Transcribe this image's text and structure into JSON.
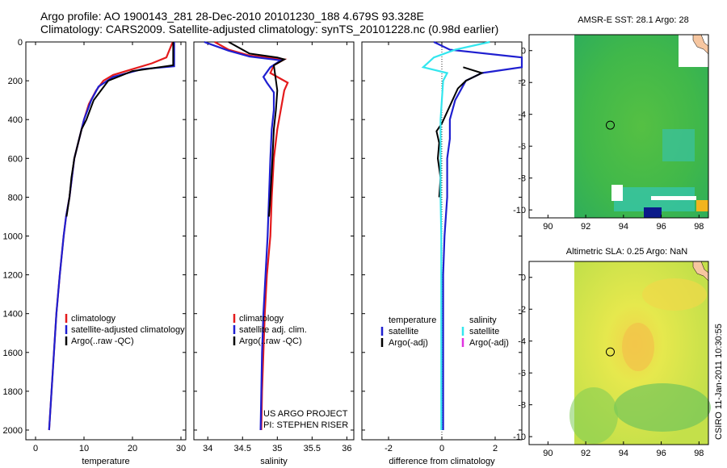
{
  "header": {
    "line1": "Argo profile: AO 1900143_281 28-Dec-2010 20101230_188 4.679S 93.328E",
    "line2": "Climatology: CARS2009. Satellite-adjusted climatology: synTS_20101228.nc (0.98d earlier)"
  },
  "side_text": "CSIRO 11-Jan-2011 10:30:55",
  "colors": {
    "red": "#e41a1c",
    "blue": "#1f1fd0",
    "black": "#000000",
    "cyan": "#33e6ee",
    "magenta": "#e033e0"
  },
  "chart_data": [
    {
      "id": "temperature",
      "type": "line",
      "xlabel": "temperature",
      "ylabel": "",
      "xlim": [
        -2,
        31
      ],
      "ylim": [
        0,
        2050
      ],
      "y_reversed": true,
      "xticks": [
        0,
        10,
        20,
        30
      ],
      "yticks": [
        0,
        200,
        400,
        600,
        800,
        1000,
        1200,
        1400,
        1600,
        1800,
        2000
      ],
      "legend": {
        "placement": "lower-center",
        "entries": [
          {
            "label": "climatology",
            "color": "#e41a1c"
          },
          {
            "label": "satellite-adjusted climatology",
            "color": "#1f1fd0"
          },
          {
            "label": "Argo(..raw -QC)",
            "color": "#000000"
          }
        ]
      },
      "series": [
        {
          "name": "climatology",
          "color": "#e41a1c",
          "points": [
            [
              28.3,
              0
            ],
            [
              27,
              80
            ],
            [
              24,
              110
            ],
            [
              20,
              140
            ],
            [
              16,
              170
            ],
            [
              14,
              200
            ],
            [
              12.5,
              250
            ],
            [
              11,
              320
            ],
            [
              10,
              400
            ],
            [
              9,
              500
            ],
            [
              8,
              600
            ],
            [
              7.5,
              700
            ],
            [
              7,
              800
            ],
            [
              6.3,
              900
            ],
            [
              5.8,
              1000
            ],
            [
              5,
              1200
            ],
            [
              4.3,
              1400
            ],
            [
              3.8,
              1600
            ],
            [
              3.3,
              1800
            ],
            [
              2.8,
              2000
            ]
          ]
        },
        {
          "name": "satellite-adjusted climatology",
          "color": "#1f1fd0",
          "points": [
            [
              28.6,
              0
            ],
            [
              28.6,
              125
            ],
            [
              22,
              140
            ],
            [
              16,
              180
            ],
            [
              13,
              230
            ],
            [
              11.5,
              300
            ],
            [
              10,
              400
            ],
            [
              9,
              500
            ],
            [
              8,
              600
            ],
            [
              7.5,
              700
            ],
            [
              7,
              800
            ],
            [
              6.3,
              900
            ],
            [
              5.8,
              1000
            ],
            [
              5,
              1200
            ],
            [
              4.3,
              1400
            ],
            [
              3.8,
              1600
            ],
            [
              3.3,
              1800
            ],
            [
              2.8,
              2000
            ]
          ]
        },
        {
          "name": "Argo",
          "color": "#000000",
          "points": [
            [
              28.4,
              0
            ],
            [
              28.4,
              120
            ],
            [
              20,
              150
            ],
            [
              15,
              200
            ],
            [
              12,
              300
            ],
            [
              10.5,
              400
            ],
            [
              9.5,
              450
            ],
            [
              9,
              500
            ],
            [
              8,
              600
            ],
            [
              7.4,
              700
            ],
            [
              7,
              800
            ],
            [
              6.4,
              900
            ]
          ]
        }
      ]
    },
    {
      "id": "salinity",
      "type": "line",
      "xlabel": "salinity",
      "ylabel": "",
      "xlim": [
        33.8,
        36.1
      ],
      "ylim": [
        0,
        2050
      ],
      "y_reversed": true,
      "xticks": [
        34,
        34.5,
        35,
        35.5,
        36
      ],
      "legend": {
        "placement": "lower-center",
        "entries": [
          {
            "label": "climatology",
            "color": "#e41a1c"
          },
          {
            "label": "satellite adj. clim.",
            "color": "#1f1fd0"
          },
          {
            "label": "Argo(..raw -QC)",
            "color": "#000000"
          }
        ]
      },
      "annotation": [
        "US ARGO PROJECT",
        "PI: STEPHEN RISER"
      ],
      "series": [
        {
          "name": "climatology",
          "color": "#e41a1c",
          "points": [
            [
              34.1,
              0
            ],
            [
              34.3,
              40
            ],
            [
              34.6,
              70
            ],
            [
              35.1,
              90
            ],
            [
              34.95,
              120
            ],
            [
              34.9,
              160
            ],
            [
              35.15,
              210
            ],
            [
              35.1,
              250
            ],
            [
              35.05,
              350
            ],
            [
              35.0,
              450
            ],
            [
              34.95,
              600
            ],
            [
              34.92,
              800
            ],
            [
              34.9,
              1000
            ],
            [
              34.85,
              1200
            ],
            [
              34.82,
              1400
            ],
            [
              34.8,
              1600
            ],
            [
              34.78,
              1800
            ],
            [
              34.77,
              2000
            ]
          ]
        },
        {
          "name": "satellite adj. clim.",
          "color": "#1f1fd0",
          "points": [
            [
              33.95,
              0
            ],
            [
              34.3,
              45
            ],
            [
              34.6,
              75
            ],
            [
              35.05,
              95
            ],
            [
              34.9,
              130
            ],
            [
              34.8,
              180
            ],
            [
              34.85,
              210
            ],
            [
              34.95,
              260
            ],
            [
              34.95,
              350
            ],
            [
              34.92,
              450
            ],
            [
              34.9,
              600
            ],
            [
              34.88,
              800
            ],
            [
              34.86,
              1000
            ],
            [
              34.83,
              1200
            ],
            [
              34.8,
              1400
            ],
            [
              34.78,
              1600
            ],
            [
              34.77,
              1800
            ],
            [
              34.76,
              2000
            ]
          ]
        },
        {
          "name": "Argo",
          "color": "#000000",
          "points": [
            [
              34.3,
              0
            ],
            [
              34.6,
              60
            ],
            [
              35.0,
              80
            ],
            [
              35.1,
              90
            ],
            [
              34.95,
              120
            ],
            [
              35.0,
              250
            ],
            [
              34.98,
              350
            ],
            [
              34.95,
              450
            ],
            [
              34.93,
              600
            ],
            [
              34.9,
              800
            ],
            [
              34.88,
              900
            ]
          ]
        }
      ]
    },
    {
      "id": "difference",
      "type": "line",
      "xlabel": "difference from climatology",
      "ylabel": "",
      "xlim": [
        -3,
        3
      ],
      "ylim": [
        0,
        2050
      ],
      "y_reversed": true,
      "xticks": [
        -2,
        0,
        2
      ],
      "legend": {
        "placement": "lower-center",
        "columns": [
          {
            "header": "temperature",
            "entries": [
              {
                "label": "satellite",
                "color": "#1f1fd0"
              },
              {
                "label": "Argo(-adj)",
                "color": "#000000"
              }
            ]
          },
          {
            "header": "salinity",
            "entries": [
              {
                "label": "satellite",
                "color": "#33e6ee"
              },
              {
                "label": "Argo(-adj)",
                "color": "#e033e0"
              }
            ]
          }
        ]
      },
      "series": [
        {
          "name": "temperature satellite",
          "color": "#1f1fd0",
          "points": [
            [
              -0.3,
              0
            ],
            [
              0.3,
              40
            ],
            [
              3,
              80
            ],
            [
              3,
              130
            ],
            [
              1.5,
              160
            ],
            [
              0.9,
              200
            ],
            [
              0.5,
              300
            ],
            [
              0.3,
              400
            ],
            [
              0.3,
              500
            ],
            [
              0.2,
              600
            ],
            [
              0.2,
              800
            ],
            [
              0.1,
              1000
            ],
            [
              0.05,
              1200
            ],
            [
              0.05,
              1500
            ],
            [
              0.05,
              1800
            ],
            [
              0.05,
              2000
            ]
          ]
        },
        {
          "name": "temperature Argo",
          "color": "#000000",
          "points": [
            [
              0.8,
              130
            ],
            [
              1.5,
              160
            ],
            [
              0.9,
              200
            ],
            [
              0.6,
              240
            ],
            [
              0.4,
              300
            ],
            [
              0.2,
              360
            ],
            [
              0,
              420
            ],
            [
              -0.2,
              460
            ],
            [
              -0.1,
              520
            ],
            [
              -0.15,
              600
            ],
            [
              -0.05,
              700
            ],
            [
              -0.1,
              800
            ]
          ]
        },
        {
          "name": "salinity satellite",
          "color": "#33e6ee",
          "points": [
            [
              1.8,
              0
            ],
            [
              0.5,
              40
            ],
            [
              -0.3,
              80
            ],
            [
              -0.7,
              130
            ],
            [
              0.2,
              160
            ],
            [
              0.05,
              200
            ],
            [
              0,
              300
            ],
            [
              -0.05,
              400
            ],
            [
              -0.05,
              500
            ],
            [
              -0.05,
              600
            ],
            [
              -0.05,
              800
            ],
            [
              -0.02,
              1000
            ],
            [
              -0.02,
              1200
            ],
            [
              -0.02,
              1500
            ],
            [
              -0.02,
              1800
            ],
            [
              -0.02,
              2000
            ]
          ]
        },
        {
          "name": "salinity Argo",
          "color": "#e033e0",
          "points": []
        }
      ]
    }
  ],
  "maps": [
    {
      "title": "AMSR-E SST: 28.1 Argo: 28",
      "xlim": [
        89,
        98.5
      ],
      "ylim": [
        -10.5,
        1
      ],
      "xticks": [
        90,
        92,
        94,
        96,
        98
      ],
      "yticks": [
        0,
        -2,
        -4,
        -6,
        -8,
        -10
      ],
      "float_position": [
        93.3,
        -4.68
      ]
    },
    {
      "title": "Altimetric SLA: 0.25 Argo: NaN",
      "xlim": [
        89,
        98.5
      ],
      "ylim": [
        -10.5,
        1
      ],
      "xticks": [
        90,
        92,
        94,
        96,
        98
      ],
      "yticks": [
        0,
        -2,
        -4,
        -6,
        -8,
        -10
      ],
      "float_position": [
        93.3,
        -4.68
      ]
    }
  ]
}
